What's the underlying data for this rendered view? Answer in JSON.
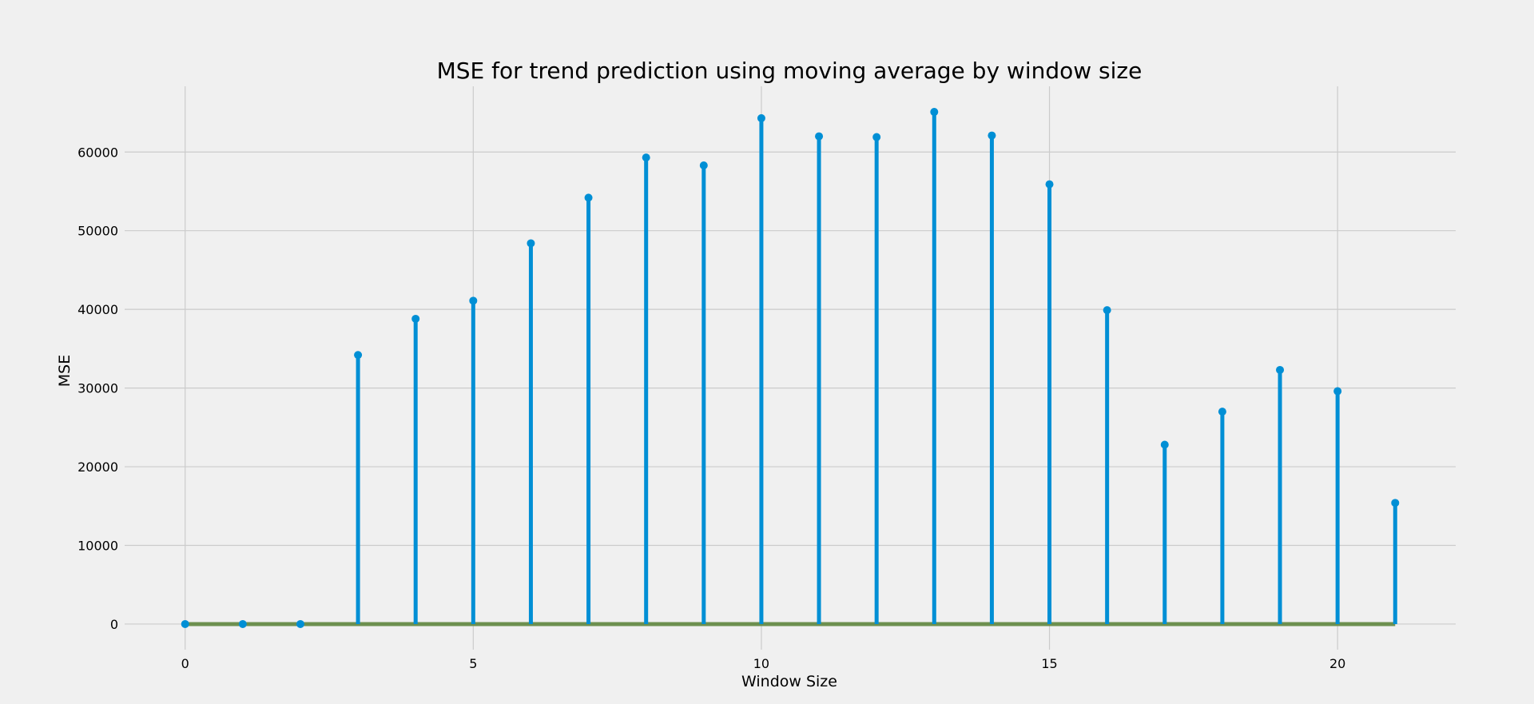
{
  "chart_data": {
    "type": "stem",
    "title": "MSE for trend prediction using moving average by window size",
    "xlabel": "Window Size",
    "ylabel": "MSE",
    "x": [
      0,
      1,
      2,
      3,
      4,
      5,
      6,
      7,
      8,
      9,
      10,
      11,
      12,
      13,
      14,
      15,
      16,
      17,
      18,
      19,
      20,
      21
    ],
    "values": [
      0,
      0,
      0,
      34200,
      38800,
      41100,
      48400,
      54200,
      59300,
      58300,
      64300,
      62000,
      61900,
      65100,
      62100,
      55900,
      39900,
      22800,
      27000,
      32300,
      29600,
      15400
    ],
    "xlim": [
      -1.05,
      22.05
    ],
    "ylim": [
      -3255,
      68355
    ],
    "xticks": [
      0,
      5,
      10,
      15,
      20
    ],
    "yticks": [
      0,
      10000,
      20000,
      30000,
      40000,
      50000,
      60000
    ],
    "grid": true,
    "colors": {
      "stem": "#008fd5",
      "baseline": "#6d904f",
      "grid": "#cbcbcb",
      "background": "#f0f0f0"
    }
  }
}
